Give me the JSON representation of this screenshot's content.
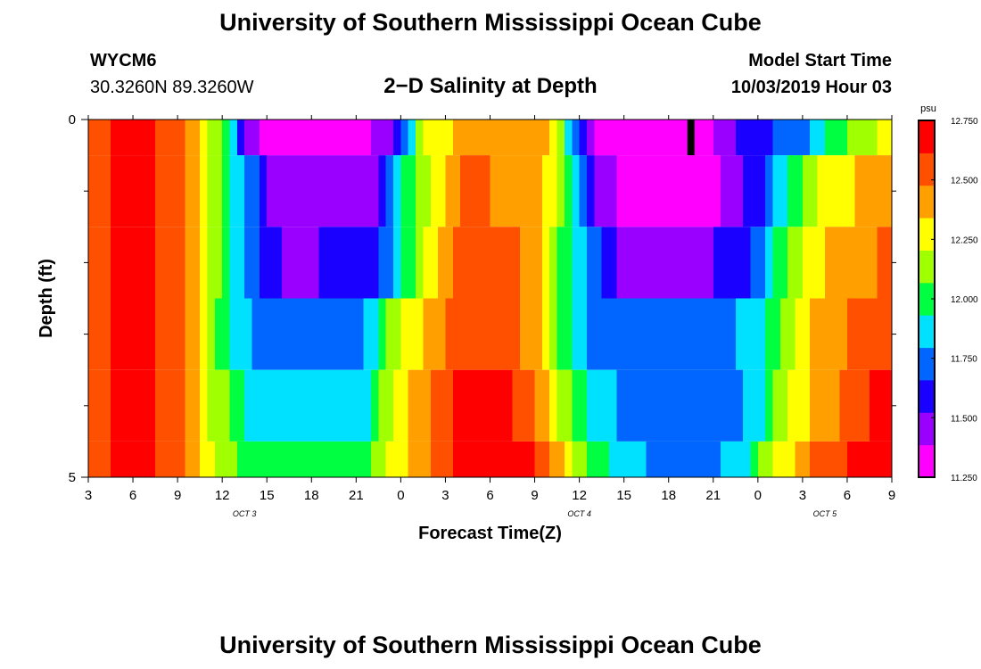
{
  "header": {
    "title": "University of Southern Mississippi Ocean Cube",
    "station_id": "WYCM6",
    "station_coords": "30.3260N 89.3260W",
    "plot_title": "2−D Salinity at Depth",
    "start_label": "Model Start Time",
    "start_value": "10/03/2019 Hour 03"
  },
  "footer": {
    "title": "University of Southern Mississippi Ocean Cube"
  },
  "chart_data": {
    "type": "heatmap",
    "title": "2−D Salinity at Depth",
    "xlabel": "Forecast Time(Z)",
    "ylabel": "Depth (ft)",
    "x_tick_labels": [
      "3",
      "6",
      "9",
      "12",
      "15",
      "18",
      "21",
      "0",
      "3",
      "6",
      "9",
      "12",
      "15",
      "18",
      "21",
      "0",
      "3",
      "6",
      "9"
    ],
    "x_range_hours": [
      0,
      54
    ],
    "date_labels": [
      {
        "label": "OCT 3",
        "hour": 10.5
      },
      {
        "label": "OCT 4",
        "hour": 33
      },
      {
        "label": "OCT 5",
        "hour": 49.5
      }
    ],
    "y_tick_labels": [
      "0",
      "5"
    ],
    "ylim": [
      0,
      5
    ],
    "y_minor_ticks": [
      1,
      2,
      3,
      4
    ],
    "colorbar": {
      "unit": "psu",
      "min": 11.25,
      "max": 12.75,
      "tick_labels": [
        "12.750",
        "12.500",
        "12.250",
        "12.000",
        "11.750",
        "11.500",
        "11.250"
      ],
      "colors": [
        "#ff00ff",
        "#9900ff",
        "#1a00ff",
        "#0066ff",
        "#00e0ff",
        "#00ff40",
        "#a0ff00",
        "#ffff00",
        "#ffa000",
        "#ff5000",
        "#ff0000"
      ]
    },
    "current_time_marker_hour": 40.5,
    "rows": [
      {
        "depth": [
          0,
          0.5
        ],
        "anchors": [
          [
            0,
            12.5
          ],
          [
            2,
            12.65
          ],
          [
            4,
            12.65
          ],
          [
            6,
            12.55
          ],
          [
            7.5,
            12.3
          ],
          [
            9,
            12.05
          ],
          [
            11,
            11.4
          ],
          [
            14,
            11.3
          ],
          [
            20,
            11.4
          ],
          [
            21,
            11.7
          ],
          [
            22,
            12.0
          ],
          [
            23,
            12.3
          ],
          [
            30,
            12.48
          ],
          [
            31,
            12.35
          ],
          [
            32,
            12.0
          ],
          [
            33,
            11.7
          ],
          [
            34,
            11.35
          ],
          [
            36,
            11.25
          ],
          [
            41,
            11.3
          ],
          [
            43,
            11.5
          ],
          [
            48,
            11.75
          ],
          [
            50,
            12.0
          ],
          [
            52,
            12.15
          ],
          [
            54,
            12.25
          ]
        ]
      },
      {
        "depth": [
          0.5,
          1.5
        ],
        "anchors": [
          [
            0,
            12.5
          ],
          [
            2,
            12.65
          ],
          [
            4,
            12.65
          ],
          [
            6,
            12.55
          ],
          [
            7.5,
            12.3
          ],
          [
            9,
            12.05
          ],
          [
            11,
            11.7
          ],
          [
            13,
            11.4
          ],
          [
            19,
            11.45
          ],
          [
            20,
            11.7
          ],
          [
            22,
            12.1
          ],
          [
            25,
            12.5
          ],
          [
            29,
            12.45
          ],
          [
            31,
            12.3
          ],
          [
            33,
            11.8
          ],
          [
            34,
            11.5
          ],
          [
            36,
            11.35
          ],
          [
            42,
            11.35
          ],
          [
            45,
            11.6
          ],
          [
            46,
            11.8
          ],
          [
            48,
            12.1
          ],
          [
            50,
            12.3
          ],
          [
            54,
            12.4
          ]
        ]
      },
      {
        "depth": [
          1.5,
          2.5
        ],
        "anchors": [
          [
            0,
            12.5
          ],
          [
            2,
            12.65
          ],
          [
            4,
            12.65
          ],
          [
            6,
            12.55
          ],
          [
            7.5,
            12.3
          ],
          [
            9,
            12.05
          ],
          [
            11,
            11.7
          ],
          [
            13,
            11.5
          ],
          [
            19,
            11.55
          ],
          [
            20,
            11.75
          ],
          [
            22,
            12.1
          ],
          [
            25,
            12.55
          ],
          [
            28,
            12.55
          ],
          [
            30,
            12.4
          ],
          [
            32,
            12.0
          ],
          [
            34,
            11.7
          ],
          [
            36,
            11.45
          ],
          [
            41,
            11.45
          ],
          [
            45,
            11.7
          ],
          [
            46,
            11.9
          ],
          [
            48,
            12.2
          ],
          [
            50,
            12.4
          ],
          [
            54,
            12.5
          ]
        ]
      },
      {
        "depth": [
          2.5,
          3.5
        ],
        "anchors": [
          [
            0,
            12.5
          ],
          [
            2,
            12.65
          ],
          [
            4,
            12.65
          ],
          [
            6,
            12.55
          ],
          [
            7.5,
            12.3
          ],
          [
            9,
            12.0
          ],
          [
            11,
            11.8
          ],
          [
            13,
            11.7
          ],
          [
            18,
            11.7
          ],
          [
            19,
            11.85
          ],
          [
            21,
            12.2
          ],
          [
            25,
            12.6
          ],
          [
            28,
            12.6
          ],
          [
            30,
            12.4
          ],
          [
            32,
            12.0
          ],
          [
            34,
            11.75
          ],
          [
            41,
            11.7
          ],
          [
            45,
            11.85
          ],
          [
            46,
            12.0
          ],
          [
            48,
            12.3
          ],
          [
            50,
            12.45
          ],
          [
            54,
            12.55
          ]
        ]
      },
      {
        "depth": [
          3.5,
          4.5
        ],
        "anchors": [
          [
            0,
            12.5
          ],
          [
            2,
            12.65
          ],
          [
            4,
            12.65
          ],
          [
            6,
            12.55
          ],
          [
            7.5,
            12.3
          ],
          [
            9,
            12.1
          ],
          [
            11,
            11.9
          ],
          [
            13,
            11.85
          ],
          [
            18,
            11.85
          ],
          [
            19,
            11.95
          ],
          [
            21,
            12.3
          ],
          [
            25,
            12.65
          ],
          [
            28,
            12.65
          ],
          [
            30,
            12.5
          ],
          [
            32,
            12.15
          ],
          [
            34,
            11.9
          ],
          [
            37,
            11.7
          ],
          [
            42,
            11.7
          ],
          [
            45,
            11.85
          ],
          [
            46,
            12.1
          ],
          [
            48,
            12.3
          ],
          [
            50,
            12.45
          ],
          [
            52,
            12.6
          ],
          [
            54,
            12.65
          ]
        ]
      },
      {
        "depth": [
          4.5,
          5
        ],
        "anchors": [
          [
            0,
            12.5
          ],
          [
            2,
            12.65
          ],
          [
            4,
            12.65
          ],
          [
            6,
            12.55
          ],
          [
            7.5,
            12.35
          ],
          [
            9,
            12.15
          ],
          [
            11,
            12.0
          ],
          [
            16,
            11.95
          ],
          [
            19,
            12.05
          ],
          [
            21,
            12.3
          ],
          [
            24,
            12.6
          ],
          [
            28,
            12.75
          ],
          [
            30,
            12.65
          ],
          [
            32,
            12.3
          ],
          [
            34,
            12.0
          ],
          [
            36,
            11.85
          ],
          [
            40,
            11.7
          ],
          [
            44,
            11.85
          ],
          [
            45,
            12.1
          ],
          [
            47,
            12.3
          ],
          [
            49,
            12.55
          ],
          [
            52,
            12.65
          ],
          [
            54,
            12.65
          ]
        ]
      }
    ]
  }
}
